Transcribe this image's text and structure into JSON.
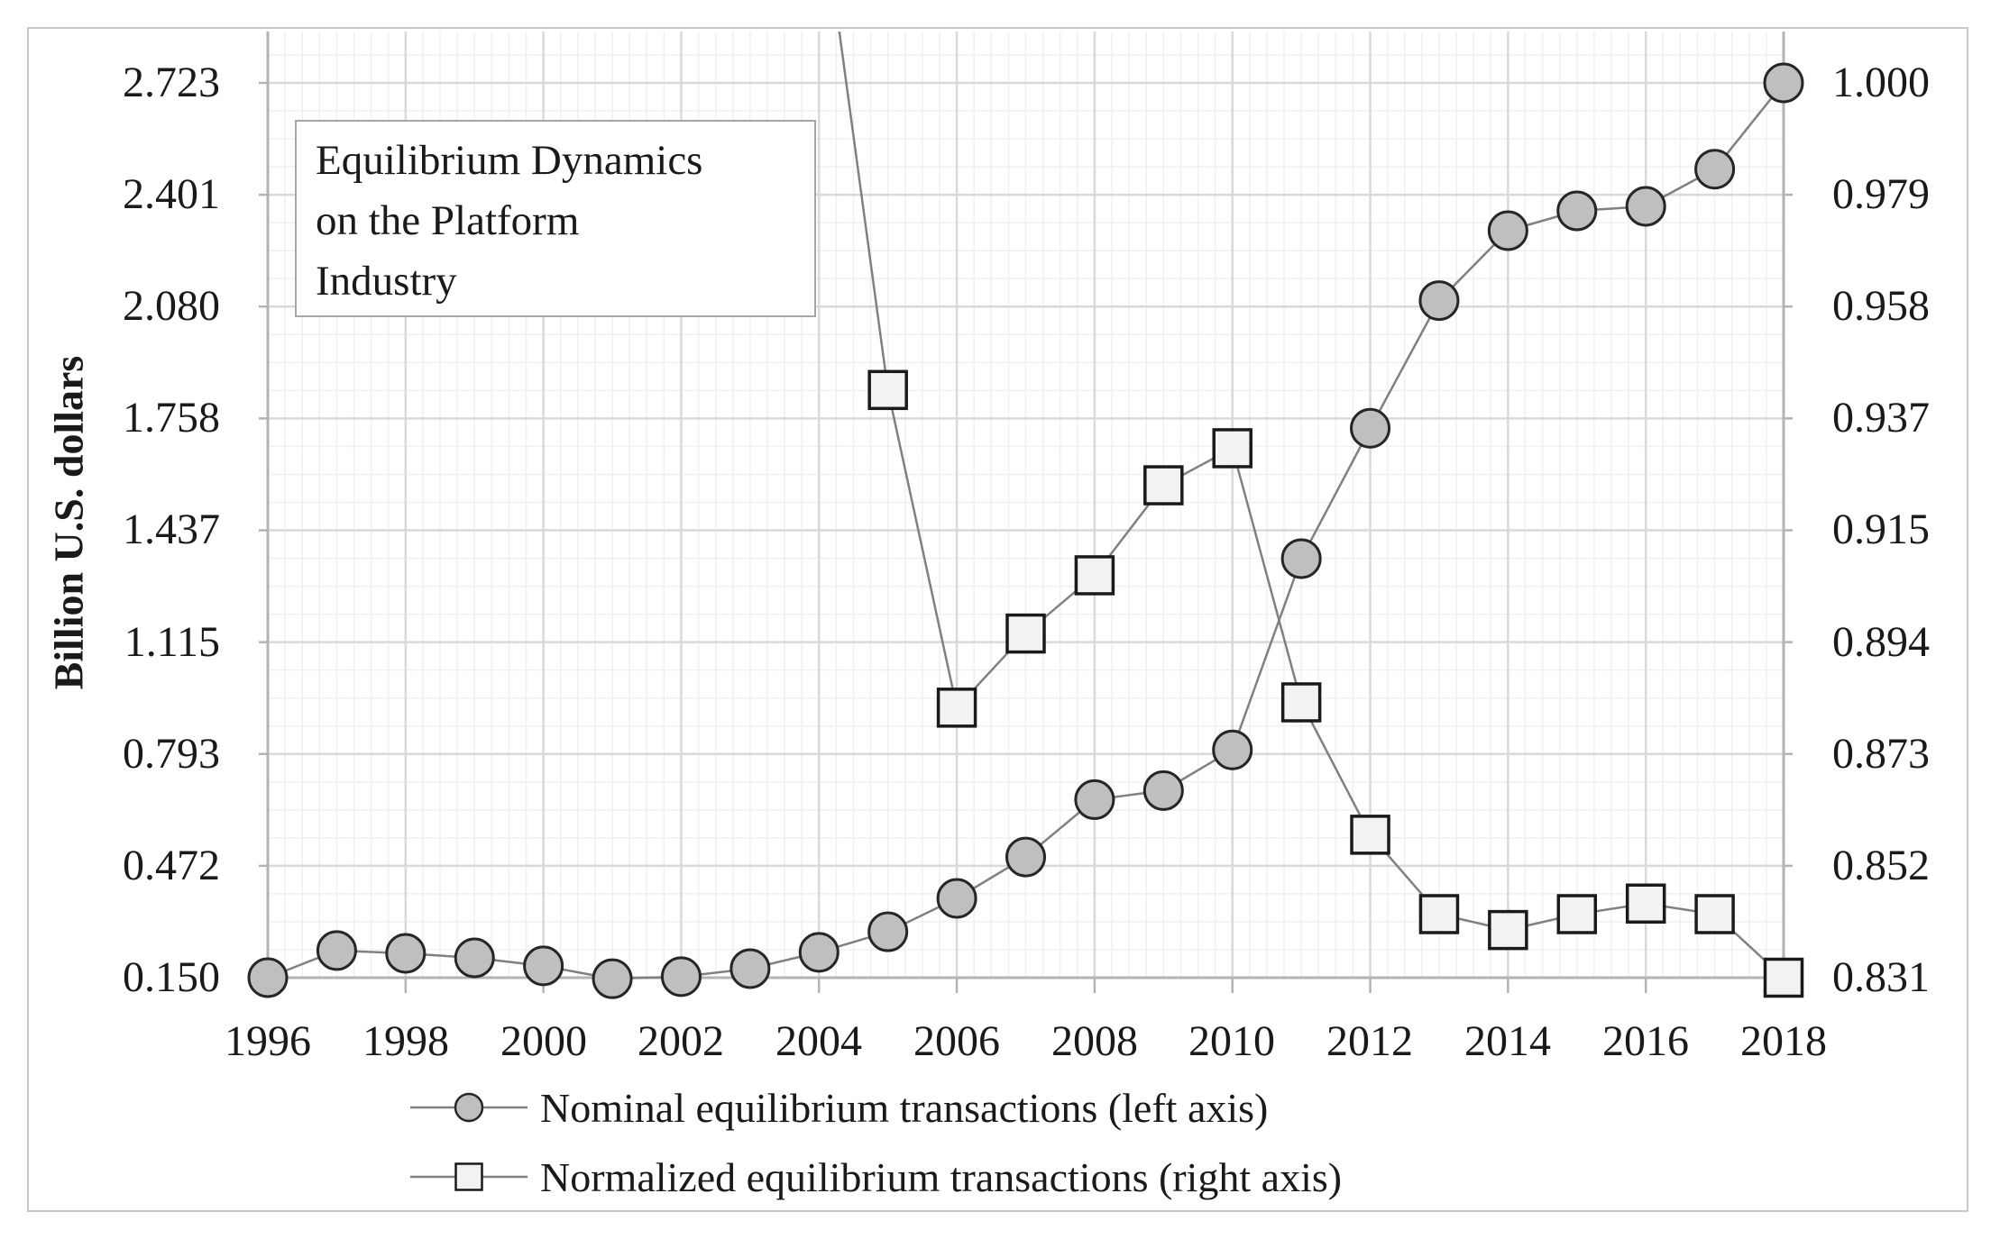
{
  "figure": {
    "title_lines": [
      "Equilibrium Dynamics",
      "on the Platform",
      "Industry"
    ],
    "y_axis_title": "Billion U.S. dollars"
  },
  "colors": {
    "background": "#ffffff",
    "frame": "#c9c9c9",
    "grid_major": "#d9d9d9",
    "grid_minor": "#f0f0f0",
    "axis_line": "#b3b3b3",
    "series_line": "#808080",
    "circle_fill": "#bfbfbf",
    "circle_stroke": "#262626",
    "square_fill": "#f2f2f2",
    "square_stroke": "#1a1a1a",
    "text": "#1a1a1a"
  },
  "chart_data": {
    "type": "line",
    "title": "Equilibrium Dynamics on the Platform Industry",
    "ylabel": "Billion U.S. dollars",
    "xlabel": "",
    "grid": "major+minor",
    "legend_position": "bottom",
    "x": [
      1996,
      1997,
      1998,
      1999,
      2000,
      2001,
      2002,
      2003,
      2004,
      2005,
      2006,
      2007,
      2008,
      2009,
      2010,
      2011,
      2012,
      2013,
      2014,
      2015,
      2016,
      2017,
      2018
    ],
    "x_tick_labels": [
      "1996",
      "1998",
      "2000",
      "2002",
      "2004",
      "2006",
      "2008",
      "2010",
      "2012",
      "2014",
      "2016",
      "2018"
    ],
    "left_axis": {
      "min": 0.15,
      "max": 2.723,
      "ticks": [
        "0.150",
        "0.472",
        "0.793",
        "1.115",
        "1.437",
        "1.758",
        "2.080",
        "2.401",
        "2.723"
      ]
    },
    "right_axis": {
      "min": 0.831,
      "max": 1.0,
      "ticks": [
        "0.831",
        "0.852",
        "0.873",
        "0.894",
        "0.915",
        "0.937",
        "0.958",
        "0.979",
        "1.000"
      ]
    },
    "series": [
      {
        "name": "Nominal equilibrium transactions (left axis)",
        "axis": "left",
        "marker": "circle",
        "values": [
          0.15,
          0.228,
          0.22,
          0.207,
          0.184,
          0.147,
          0.153,
          0.176,
          0.223,
          0.282,
          0.378,
          0.497,
          0.662,
          0.688,
          0.805,
          1.355,
          1.73,
          2.097,
          2.298,
          2.355,
          2.368,
          2.475,
          2.723
        ]
      },
      {
        "name": "Normalized equilibrium transactions (right axis)",
        "axis": "right",
        "marker": "square",
        "note": "values before 2005 lie above the axis maximum; the line enters the plot from the top",
        "values": [
          null,
          null,
          null,
          null,
          null,
          null,
          null,
          null,
          1.038,
          0.942,
          0.882,
          0.896,
          0.907,
          0.924,
          0.931,
          0.883,
          0.858,
          0.843,
          0.84,
          0.843,
          0.845,
          0.843,
          0.831
        ]
      }
    ]
  }
}
